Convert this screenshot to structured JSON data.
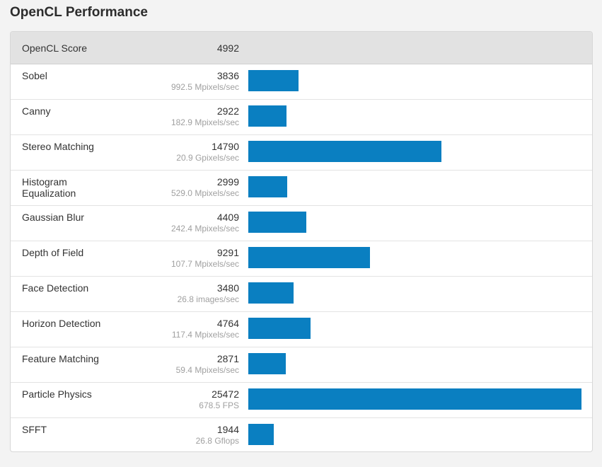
{
  "page": {
    "title": "OpenCL Performance"
  },
  "score": {
    "label": "OpenCL Score",
    "value": "4992"
  },
  "colors": {
    "bar": "#0a7fc1",
    "header_bg": "#e2e2e2",
    "unit_text": "#a0a0a0"
  },
  "chart_data": {
    "type": "bar",
    "orientation": "horizontal",
    "title": "OpenCL Performance",
    "categories": [
      "Sobel",
      "Canny",
      "Stereo Matching",
      "Histogram Equalization",
      "Gaussian Blur",
      "Depth of Field",
      "Face Detection",
      "Horizon Detection",
      "Feature Matching",
      "Particle Physics",
      "SFFT"
    ],
    "values": [
      3836,
      2922,
      14790,
      2999,
      4409,
      9291,
      3480,
      4764,
      2871,
      25472,
      1944
    ],
    "value_labels": [
      "3836",
      "2922",
      "14790",
      "2999",
      "4409",
      "9291",
      "3480",
      "4764",
      "2871",
      "25472",
      "1944"
    ],
    "units": [
      "992.5 Mpixels/sec",
      "182.9 Mpixels/sec",
      "20.9 Gpixels/sec",
      "529.0 Mpixels/sec",
      "242.4 Mpixels/sec",
      "107.7 Mpixels/sec",
      "26.8 images/sec",
      "117.4 Mpixels/sec",
      "59.4 Mpixels/sec",
      "678.5 FPS",
      "26.8 Gflops"
    ],
    "xlim": [
      0,
      25472
    ],
    "grid": false,
    "legend": "none"
  }
}
